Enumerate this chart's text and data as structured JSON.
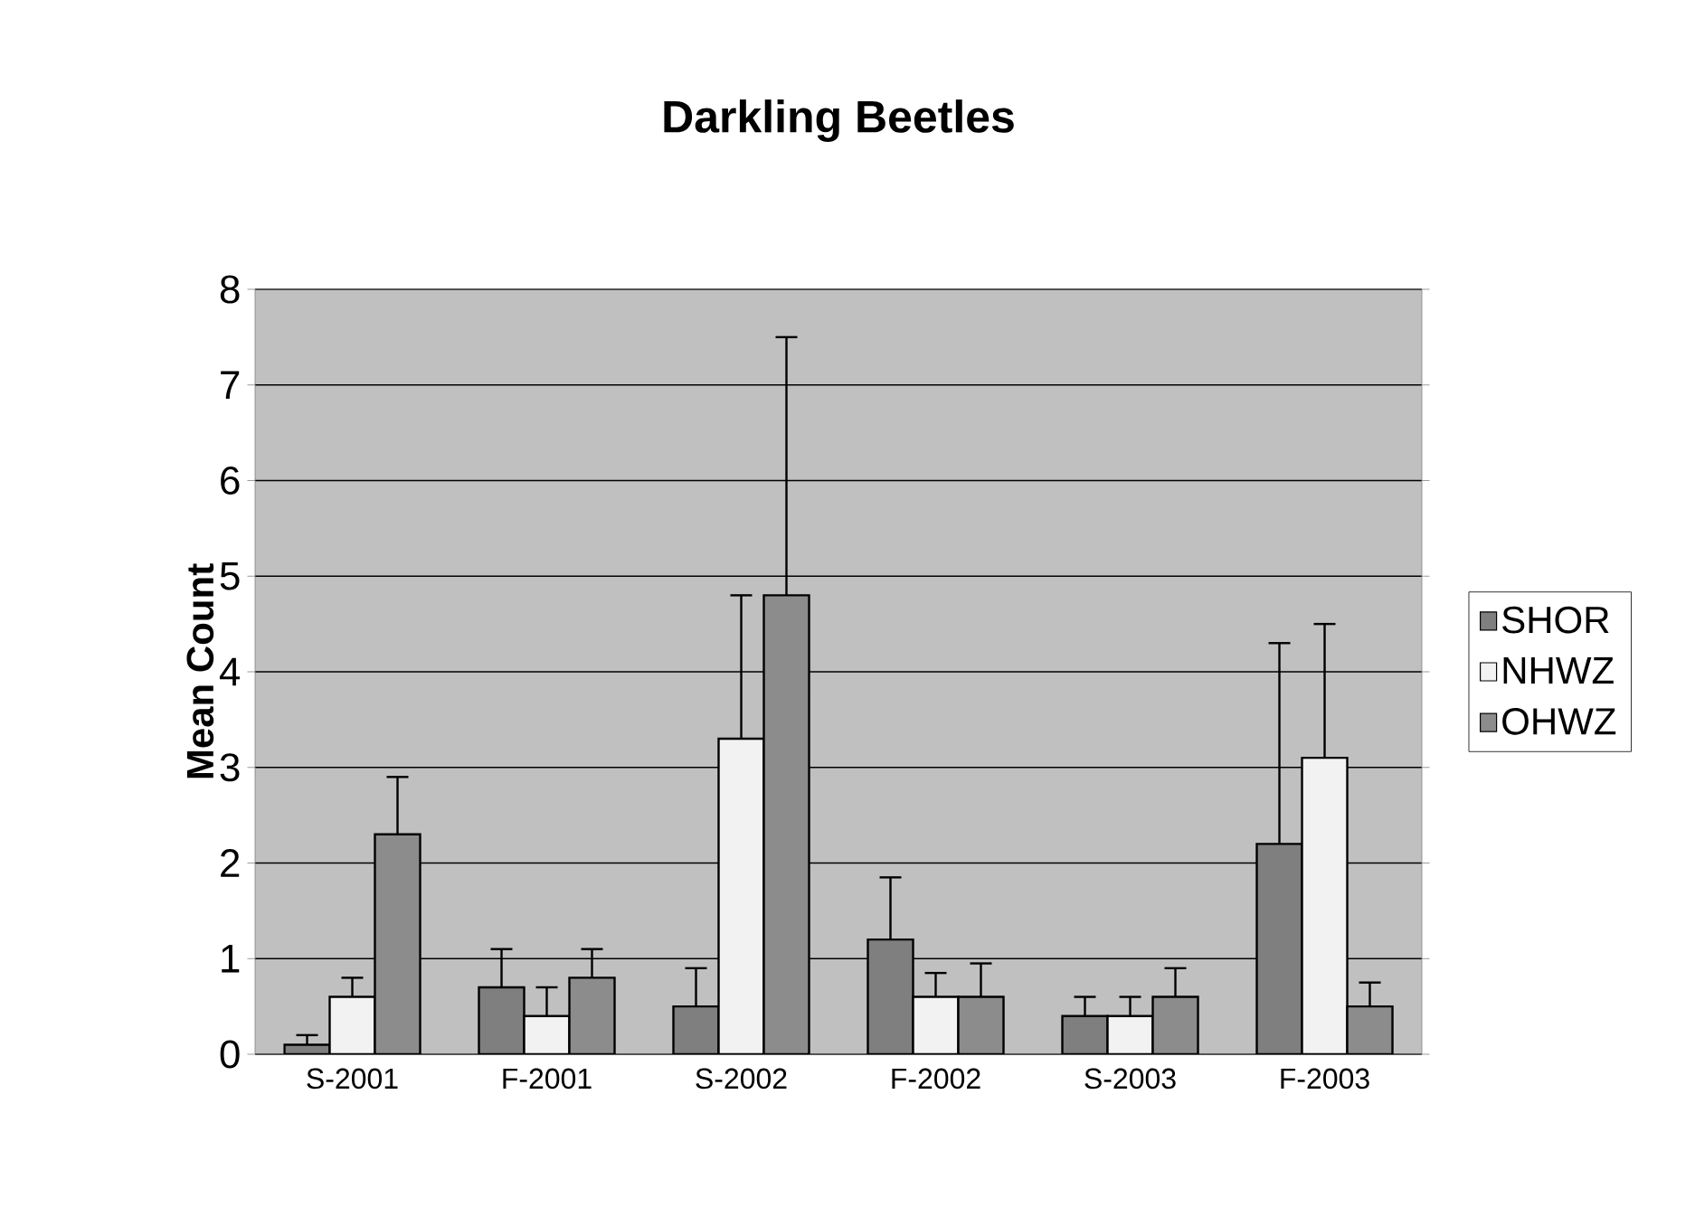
{
  "chart_data": {
    "type": "bar",
    "title": "Darkling Beetles",
    "ylabel": "Mean Count",
    "categories": [
      "S-2001",
      "F-2001",
      "S-2002",
      "F-2002",
      "S-2003",
      "F-2003"
    ],
    "series": [
      {
        "name": "SHOR",
        "color": "#7f7f7f",
        "values": [
          0.1,
          0.7,
          0.5,
          1.2,
          0.4,
          2.2
        ],
        "errors": [
          [
            0.1,
            0.2
          ],
          [
            0.7,
            1.1
          ],
          [
            0.5,
            0.9
          ],
          [
            1.2,
            1.85
          ],
          [
            0.4,
            0.6
          ],
          [
            2.2,
            4.3
          ]
        ]
      },
      {
        "name": "NHWZ",
        "color": "#f2f2f2",
        "values": [
          0.6,
          0.4,
          3.3,
          0.6,
          0.4,
          3.1
        ],
        "errors": [
          [
            0.6,
            0.8
          ],
          [
            0.4,
            0.7
          ],
          [
            3.3,
            4.8
          ],
          [
            0.6,
            0.85
          ],
          [
            0.4,
            0.6
          ],
          [
            3.1,
            4.5
          ]
        ]
      },
      {
        "name": "OHWZ",
        "color": "#8c8c8c",
        "values": [
          2.3,
          0.8,
          4.8,
          0.6,
          0.6,
          0.5
        ],
        "errors": [
          [
            2.3,
            2.9
          ],
          [
            0.8,
            1.1
          ],
          [
            4.8,
            7.5
          ],
          [
            0.6,
            0.95
          ],
          [
            0.6,
            0.9
          ],
          [
            0.5,
            0.75
          ]
        ]
      }
    ],
    "ylim": [
      0,
      8
    ],
    "yticks": [
      0,
      1,
      2,
      3,
      4,
      5,
      6,
      7,
      8
    ],
    "grid": "y",
    "legend": "right"
  }
}
